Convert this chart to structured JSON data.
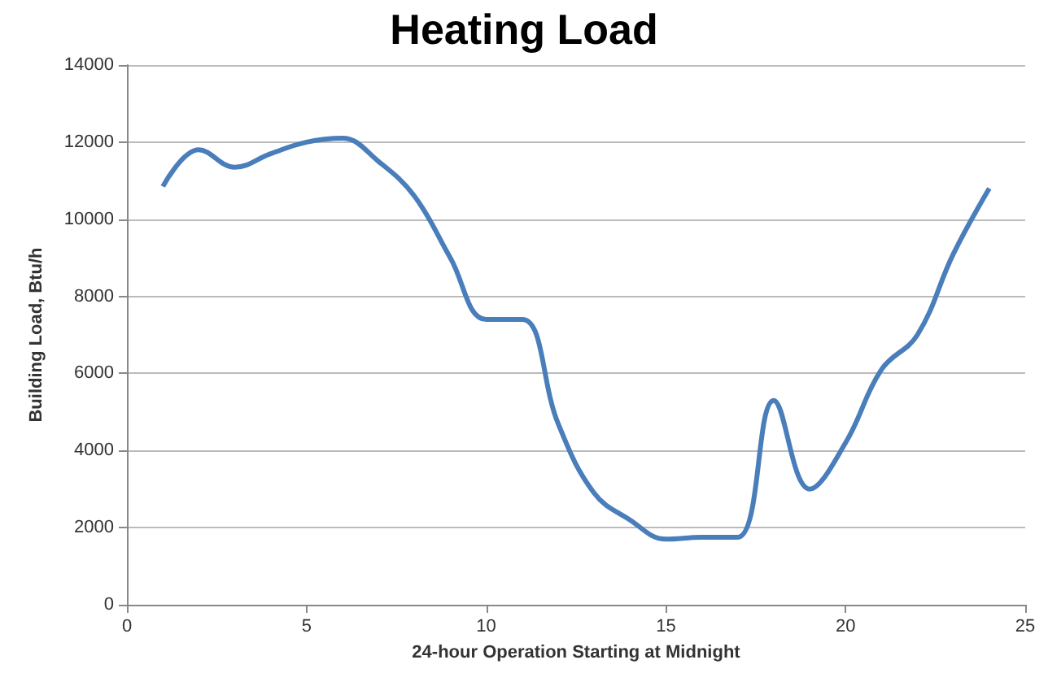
{
  "chart_data": {
    "type": "line",
    "title": "Heating Load",
    "xlabel": "24-hour Operation Starting at Midnight",
    "ylabel": "Building Load, Btu/h",
    "x": [
      1,
      2,
      3,
      4,
      5,
      6,
      7,
      8,
      9,
      10,
      11,
      12,
      13,
      14,
      15,
      16,
      17,
      18,
      19,
      20,
      21,
      22,
      23,
      24
    ],
    "series": [
      {
        "color": "#4a7ebb",
        "values": [
          10850,
          11800,
          11350,
          11700,
          12000,
          12100,
          11500,
          10600,
          9000,
          7400,
          7400,
          4700,
          2900,
          2200,
          1700,
          1750,
          1750,
          5300,
          3000,
          4200,
          6100,
          7000,
          9100,
          10800
        ]
      }
    ],
    "xlim": [
      0,
      25
    ],
    "xticks": [
      0,
      5,
      10,
      15,
      20,
      25
    ],
    "ylim": [
      0,
      14000
    ],
    "yticks": [
      0,
      2000,
      4000,
      6000,
      8000,
      10000,
      12000,
      14000
    ],
    "grid": "y",
    "marker": "none",
    "line_style": "solid"
  }
}
